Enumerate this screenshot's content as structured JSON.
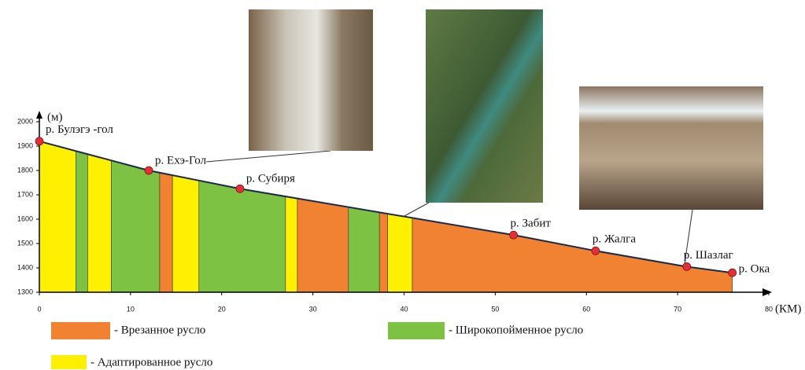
{
  "chart_data": {
    "type": "profile",
    "x_label": "(КМ)",
    "y_label": "(м)",
    "xlim": [
      0,
      80
    ],
    "ylim": [
      1300,
      2000
    ],
    "xticks": [
      0,
      10,
      20,
      30,
      40,
      50,
      60,
      70,
      80
    ],
    "yticks": [
      1300,
      1400,
      1500,
      1600,
      1700,
      1800,
      1900,
      2000
    ],
    "profile": {
      "x": [
        0,
        12,
        22,
        52,
        61,
        71,
        76
      ],
      "values": [
        1920,
        1800,
        1725,
        1535,
        1470,
        1405,
        1380
      ],
      "labels": [
        "р. Булэгэ -гол",
        "р. Ехэ-Гол",
        "р. Субиря",
        "р. Забит",
        "р. Жалга",
        "р. Шазлаг",
        "р. Ока"
      ],
      "color": "#1a2a4a",
      "point_color": "#e0303a"
    },
    "legend": [
      {
        "label": "- Врезанное русло",
        "color": "#f08232"
      },
      {
        "label": "- Широкопойменное русло",
        "color": "#7dc242"
      },
      {
        "label": "- Адаптированное русло",
        "color": "#ffef00"
      }
    ],
    "segments": [
      {
        "from": 0,
        "to": 4,
        "legend": 2
      },
      {
        "from": 4,
        "to": 5.3,
        "legend": 1
      },
      {
        "from": 5.3,
        "to": 7.9,
        "legend": 2
      },
      {
        "from": 7.9,
        "to": 13.2,
        "legend": 1
      },
      {
        "from": 13.2,
        "to": 14.6,
        "legend": 0
      },
      {
        "from": 14.6,
        "to": 17.5,
        "legend": 2
      },
      {
        "from": 17.5,
        "to": 27,
        "legend": 1
      },
      {
        "from": 27,
        "to": 28.3,
        "legend": 2
      },
      {
        "from": 28.3,
        "to": 33.9,
        "legend": 0
      },
      {
        "from": 33.9,
        "to": 37.3,
        "legend": 1
      },
      {
        "from": 37.3,
        "to": 38.2,
        "legend": 0
      },
      {
        "from": 38.2,
        "to": 40.9,
        "legend": 2
      },
      {
        "from": 40.9,
        "to": 76,
        "legend": 0
      }
    ]
  }
}
